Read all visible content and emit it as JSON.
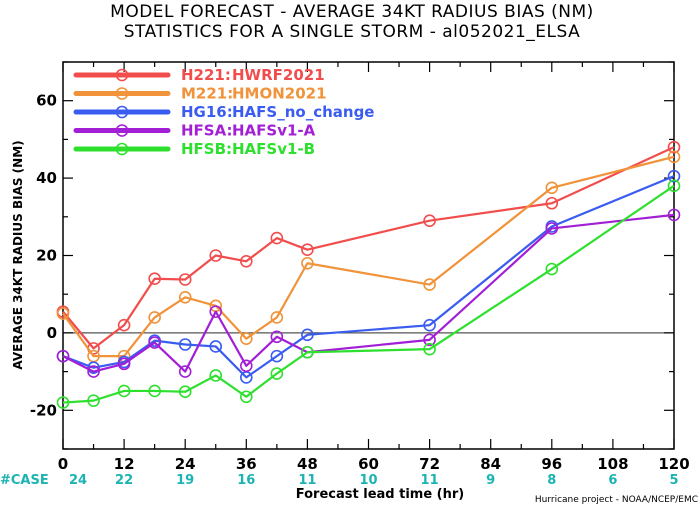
{
  "chart_data": {
    "type": "line",
    "title": "MODEL FORECAST - AVERAGE 34KT RADIUS BIAS (NM)",
    "subtitle": "STATISTICS FOR A SINGLE STORM - al052021_ELSA",
    "xlabel": "Forecast lead time (hr)",
    "ylabel": "AVERAGE 34KT RADIUS BIAS (NM)",
    "xlim": [
      0,
      120
    ],
    "ylim": [
      -30,
      70
    ],
    "x_ticks": [
      0,
      12,
      24,
      36,
      48,
      60,
      72,
      84,
      96,
      108,
      120
    ],
    "y_ticks": [
      -20,
      0,
      20,
      40,
      60
    ],
    "zero_line": true,
    "legend_position": "top-left",
    "case_label": "#CASE",
    "cases": [
      24,
      22,
      19,
      16,
      11,
      10,
      11,
      9,
      8,
      6,
      5
    ],
    "credit": "Hurricane project - NOAA/NCEP/EMC",
    "series": [
      {
        "code": "H221:",
        "name": "HWRF2021",
        "color": "#f24d4d",
        "x": [
          0,
          6,
          12,
          18,
          24,
          30,
          36,
          42,
          48,
          72,
          96,
          120
        ],
        "y": [
          5.5,
          -4,
          2,
          14,
          13.8,
          20,
          18.5,
          24.5,
          21.5,
          29,
          33.5,
          48
        ]
      },
      {
        "code": "M221:",
        "name": "HMON2021",
        "color": "#f0933a",
        "x": [
          0,
          6,
          12,
          18,
          24,
          30,
          36,
          42,
          48,
          72,
          96,
          120
        ],
        "y": [
          5,
          -6,
          -6,
          4,
          9.2,
          7,
          -1.5,
          4,
          18,
          12.5,
          37.5,
          45.5
        ]
      },
      {
        "code": "HG16:",
        "name": "HAFS_no_change",
        "color": "#3a5cf0",
        "x": [
          0,
          6,
          12,
          18,
          24,
          30,
          36,
          42,
          48,
          72,
          96,
          120
        ],
        "y": [
          -6,
          -9,
          -7.5,
          -2,
          -3,
          -3.5,
          -11.5,
          -6,
          -0.5,
          2,
          27.5,
          40.5
        ]
      },
      {
        "code": "HFSA:",
        "name": "HAFSv1-A",
        "color": "#a21fd6",
        "x": [
          0,
          6,
          12,
          18,
          24,
          30,
          36,
          42,
          48,
          72,
          96,
          120
        ],
        "y": [
          -6,
          -10,
          -8,
          -2.5,
          -10,
          5.5,
          -8.5,
          -1,
          -5,
          -1.8,
          27,
          30.5
        ]
      },
      {
        "code": "HFSB:",
        "name": "HAFSv1-B",
        "color": "#2ee02e",
        "x": [
          0,
          6,
          12,
          18,
          24,
          30,
          36,
          42,
          48,
          72,
          96,
          120
        ],
        "y": [
          -18,
          -17.5,
          -15,
          -15,
          -15.2,
          -11,
          -16.5,
          -10.5,
          -5,
          -4.2,
          16.5,
          38
        ]
      }
    ]
  }
}
